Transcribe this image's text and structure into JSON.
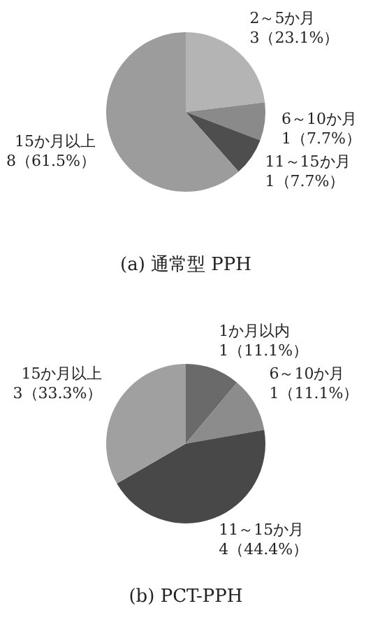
{
  "chart_data": [
    {
      "type": "pie",
      "title": "(a) 通常型 PPH",
      "categories": [
        "2～5か月",
        "6～10か月",
        "11～15か月",
        "15か月以上"
      ],
      "values": [
        3,
        1,
        1,
        8
      ],
      "value_labels": [
        "3（23.1%）",
        "1（7.7%）",
        "1（7.7%）",
        "8（61.5%）"
      ],
      "colors": [
        "#b4b4b4",
        "#8a8a8a",
        "#4e4e4e",
        "#9c9c9c"
      ]
    },
    {
      "type": "pie",
      "title": "(b) PCT-PPH",
      "categories": [
        "1か月以内",
        "6～10か月",
        "11～15か月",
        "15か月以上"
      ],
      "values": [
        1,
        1,
        4,
        3
      ],
      "value_labels": [
        "1（11.1%）",
        "1（11.1%）",
        "4（44.4%）",
        "3（33.3%）"
      ],
      "colors": [
        "#6a6a6a",
        "#8c8c8c",
        "#484848",
        "#a0a0a0"
      ]
    }
  ]
}
